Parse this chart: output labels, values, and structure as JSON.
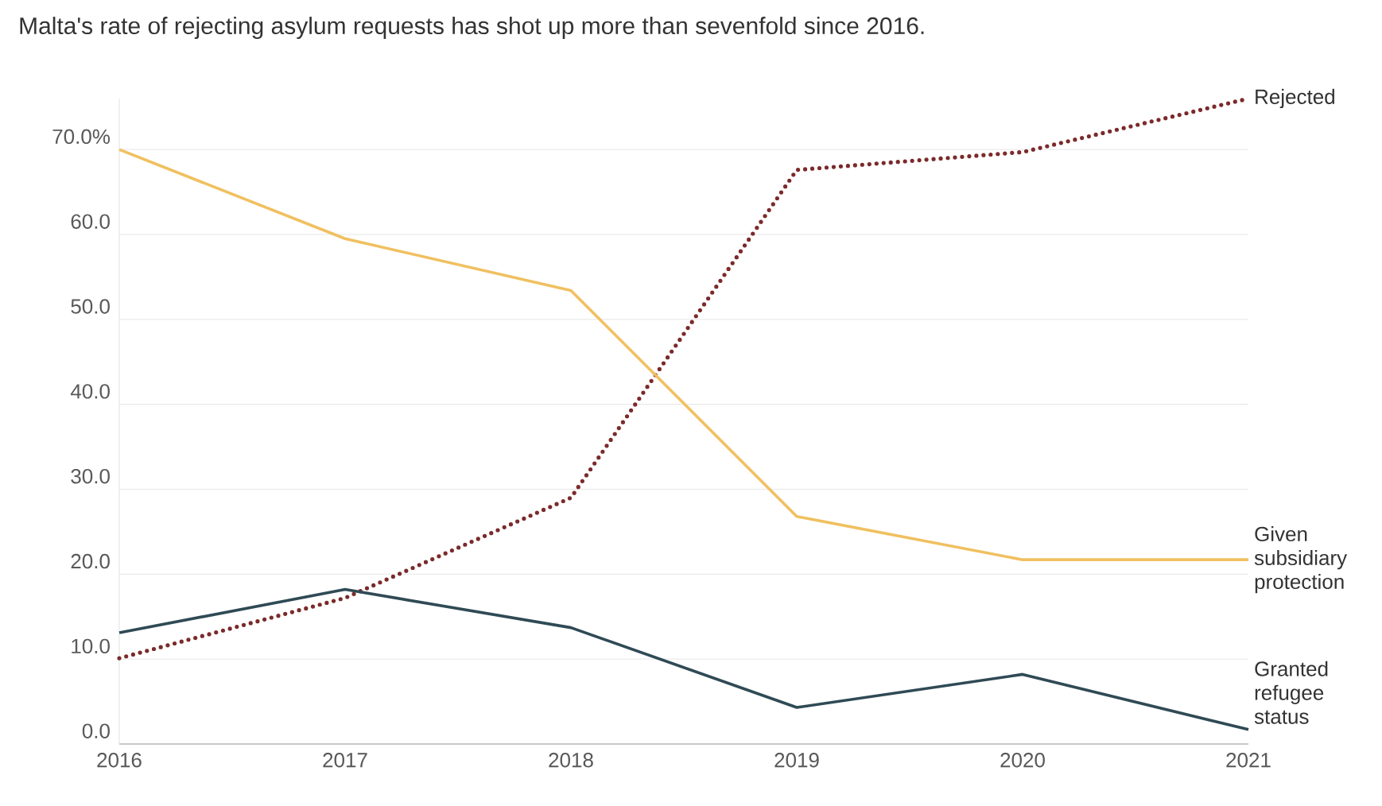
{
  "chart_data": {
    "type": "line",
    "title": "Malta's rate of rejecting asylum requests has shot up more than sevenfold since 2016.",
    "x": [
      2016,
      2017,
      2018,
      2019,
      2020,
      2021
    ],
    "series": [
      {
        "name": "Rejected",
        "color": "#7b2a2a",
        "line_style": "dotted",
        "values": [
          10.1,
          17.2,
          29.0,
          67.6,
          69.7,
          76.0
        ]
      },
      {
        "name": "Given subsidiary protection",
        "color": "#f0c060",
        "line_style": "solid",
        "values": [
          70.0,
          59.5,
          53.4,
          26.8,
          21.7,
          21.7
        ]
      },
      {
        "name": "Granted refugee status",
        "color": "#2f4a55",
        "line_style": "solid",
        "values": [
          13.1,
          18.2,
          13.7,
          4.3,
          8.2,
          1.7
        ]
      }
    ],
    "xlim": [
      2016,
      2021
    ],
    "xticks": [
      2016,
      2017,
      2018,
      2019,
      2020,
      2021
    ],
    "ylim": [
      0,
      76
    ],
    "yticks": [
      {
        "value": 0,
        "label": "0.0"
      },
      {
        "value": 10,
        "label": "10.0"
      },
      {
        "value": 20,
        "label": "20.0"
      },
      {
        "value": 30,
        "label": "30.0"
      },
      {
        "value": 40,
        "label": "40.0"
      },
      {
        "value": 50,
        "label": "50.0"
      },
      {
        "value": 60,
        "label": "60.0"
      },
      {
        "value": 70,
        "label": "70.0%"
      }
    ],
    "grid": "y",
    "marker": "none"
  }
}
